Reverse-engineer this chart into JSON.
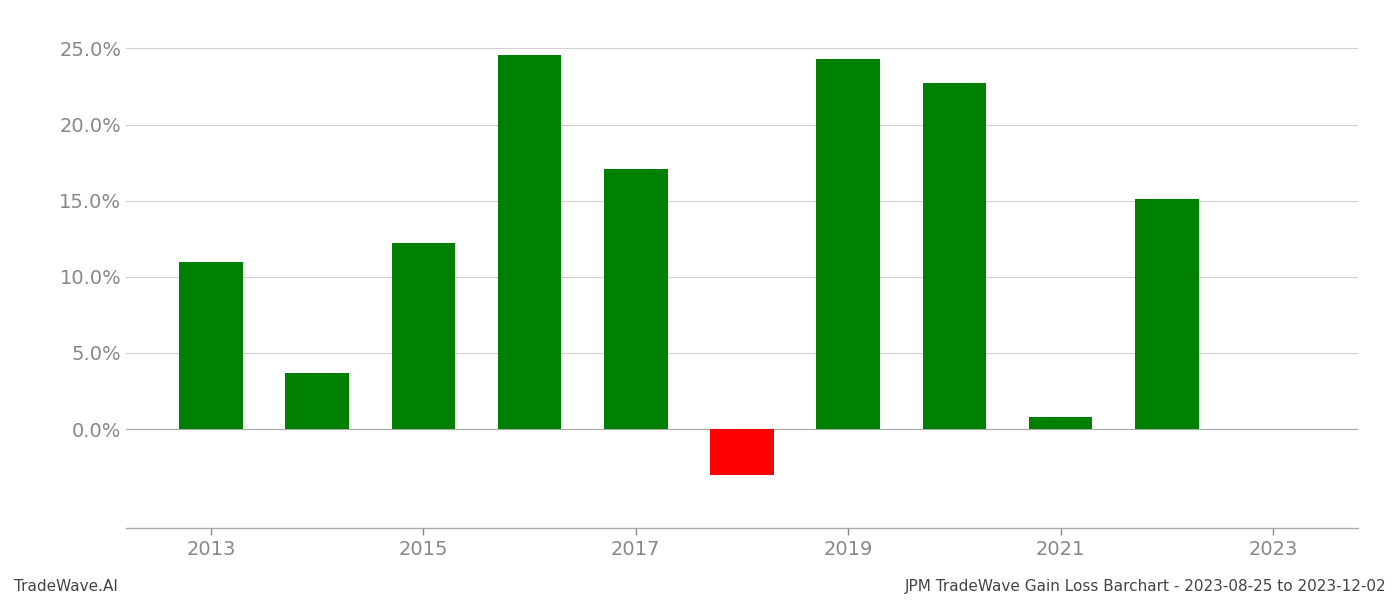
{
  "years": [
    2013,
    2014,
    2015,
    2016,
    2017,
    2018,
    2019,
    2020,
    2021,
    2022
  ],
  "values": [
    0.11,
    0.037,
    0.122,
    0.246,
    0.171,
    -0.03,
    0.243,
    0.227,
    0.008,
    0.151
  ],
  "bar_colors": [
    "#008000",
    "#008000",
    "#008000",
    "#008000",
    "#008000",
    "#ff0000",
    "#008000",
    "#008000",
    "#008000",
    "#008000"
  ],
  "ylim": [
    -0.065,
    0.27
  ],
  "background_color": "#ffffff",
  "footer_left": "TradeWave.AI",
  "footer_right": "JPM TradeWave Gain Loss Barchart - 2023-08-25 to 2023-12-02",
  "ytick_values": [
    0.0,
    0.05,
    0.1,
    0.15,
    0.2,
    0.25
  ],
  "xtick_labels": [
    "2013",
    "2015",
    "2017",
    "2019",
    "2021",
    "2023"
  ],
  "xtick_values": [
    2013,
    2015,
    2017,
    2019,
    2021,
    2023
  ],
  "xlim": [
    2012.2,
    2023.8
  ],
  "grid_color": "#d0d0d0",
  "tick_color": "#888888",
  "label_color": "#888888",
  "bar_width": 0.6,
  "figsize": [
    14.0,
    6.0
  ],
  "dpi": 100,
  "spine_color": "#aaaaaa",
  "footer_fontsize": 11,
  "tick_fontsize": 14
}
